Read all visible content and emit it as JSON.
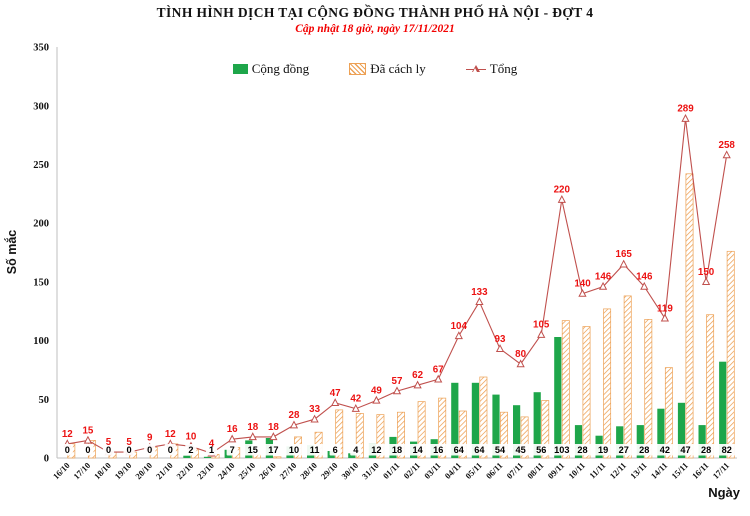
{
  "header": {
    "title": "TÌNH HÌNH DỊCH TẠI CỘNG ĐỒNG THÀNH PHỐ HÀ NỘI - ĐỢT 4",
    "subtitle": "Cập nhật 18 giờ, ngày 17/11/2021"
  },
  "legend": [
    {
      "label": "Cộng đồng",
      "swatch": "green-solid-square",
      "color": "#1EA64A"
    },
    {
      "label": "Đã cách ly",
      "swatch": "orange-hatched-square",
      "color": "#EDA155"
    },
    {
      "label": "Tổng",
      "swatch": "red-line-with-triangle-marker",
      "color": "#C0504D"
    }
  ],
  "axes": {
    "y_label": "Số mắc",
    "x_label": "Ngày",
    "y_ticks": [
      0,
      50,
      100,
      150,
      200,
      250,
      300,
      350
    ],
    "y_max": 350
  },
  "colors": {
    "community_bar": "#1EA64A",
    "isolated_bar_hatch": "#EDA155",
    "total_line": "#C0504D",
    "total_label": "#EC1212",
    "community_label": "#000000",
    "axis_line": "#BFBFBF",
    "subtitle": "#F20000"
  },
  "chart_data": {
    "type": "bar",
    "subtype": "grouped-bars-with-line-overlay",
    "title": "TÌNH HÌNH DỊCH TẠI CỘNG ĐỒNG THÀNH PHỐ HÀ NỘI - ĐỢT 4",
    "subtitle": "Cập nhật 18 giờ, ngày 17/11/2021",
    "xlabel": "Ngày",
    "ylabel": "Số mắc",
    "ylim": [
      0,
      350
    ],
    "grid": false,
    "legend_position": "top-center",
    "categories": [
      "16/10",
      "17/10",
      "18/10",
      "19/10",
      "20/10",
      "21/10",
      "22/10",
      "23/10",
      "24/10",
      "25/10",
      "26/10",
      "27/10",
      "28/10",
      "29/10",
      "30/10",
      "31/10",
      "01/11",
      "02/11",
      "03/11",
      "04/11",
      "05/11",
      "06/11",
      "07/11",
      "08/11",
      "09/11",
      "10/11",
      "11/11",
      "12/11",
      "13/11",
      "14/11",
      "15/11",
      "16/11",
      "17/11"
    ],
    "series": [
      {
        "name": "Cộng đồng",
        "type": "bar",
        "style": "solid",
        "color": "#1EA64A",
        "labels_shown": true,
        "values": [
          0,
          0,
          0,
          0,
          0,
          0,
          2,
          1,
          7,
          15,
          17,
          10,
          11,
          6,
          4,
          12,
          18,
          14,
          16,
          64,
          64,
          54,
          45,
          56,
          103,
          28,
          19,
          27,
          28,
          42,
          47,
          28,
          82
        ]
      },
      {
        "name": "Đã cách ly",
        "type": "bar",
        "style": "hatched",
        "color": "#EDA155",
        "labels_shown": false,
        "values": [
          12,
          15,
          5,
          5,
          9,
          12,
          8,
          3,
          9,
          3,
          1,
          18,
          22,
          41,
          38,
          37,
          39,
          48,
          51,
          40,
          69,
          39,
          35,
          49,
          117,
          112,
          127,
          138,
          118,
          77,
          242,
          122,
          176
        ]
      },
      {
        "name": "Tổng",
        "type": "line",
        "marker": "open-triangle",
        "color": "#C0504D",
        "labels_shown": true,
        "label_color": "#EC1212",
        "values": [
          12,
          15,
          5,
          5,
          9,
          12,
          10,
          4,
          16,
          18,
          18,
          28,
          33,
          47,
          42,
          49,
          57,
          62,
          67,
          104,
          133,
          93,
          80,
          105,
          220,
          140,
          146,
          165,
          146,
          119,
          289,
          150,
          258
        ]
      }
    ]
  }
}
